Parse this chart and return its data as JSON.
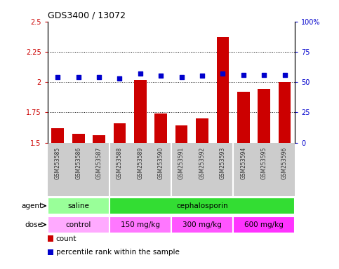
{
  "title": "GDS3400 / 13072",
  "samples": [
    "GSM253585",
    "GSM253586",
    "GSM253587",
    "GSM253588",
    "GSM253589",
    "GSM253590",
    "GSM253591",
    "GSM253592",
    "GSM253593",
    "GSM253594",
    "GSM253595",
    "GSM253596"
  ],
  "bar_values": [
    1.62,
    1.57,
    1.56,
    1.66,
    2.02,
    1.74,
    1.64,
    1.7,
    2.37,
    1.92,
    1.94,
    2.0
  ],
  "dot_values": [
    54,
    54,
    54,
    53,
    57,
    55,
    54,
    55,
    57,
    56,
    56,
    56
  ],
  "bar_color": "#cc0000",
  "dot_color": "#0000cc",
  "ylim_left": [
    1.5,
    2.5
  ],
  "ylim_right": [
    0,
    100
  ],
  "yticks_left": [
    1.5,
    1.75,
    2.0,
    2.25,
    2.5
  ],
  "ytick_labels_left": [
    "1.5",
    "1.75",
    "2",
    "2.25",
    "2.5"
  ],
  "yticks_right": [
    0,
    25,
    50,
    75,
    100
  ],
  "ytick_labels_right": [
    "0",
    "25",
    "50",
    "75",
    "100%"
  ],
  "hlines": [
    1.75,
    2.0,
    2.25
  ],
  "group_boundaries": [
    3,
    6,
    9
  ],
  "agent_groups": [
    {
      "label": "saline",
      "start": 0,
      "end": 3,
      "color": "#99ff99"
    },
    {
      "label": "cephalosporin",
      "start": 3,
      "end": 12,
      "color": "#33dd33"
    }
  ],
  "dose_groups": [
    {
      "label": "control",
      "start": 0,
      "end": 3,
      "color": "#ffaaff"
    },
    {
      "label": "150 mg/kg",
      "start": 3,
      "end": 6,
      "color": "#ff77ff"
    },
    {
      "label": "300 mg/kg",
      "start": 6,
      "end": 9,
      "color": "#ff55ff"
    },
    {
      "label": "600 mg/kg",
      "start": 9,
      "end": 12,
      "color": "#ff33ff"
    }
  ],
  "agent_label": "agent",
  "dose_label": "dose",
  "legend_count_label": "count",
  "legend_pct_label": "percentile rank within the sample",
  "bar_color_red": "#cc0000",
  "dot_color_blue": "#0000cc",
  "tick_area_bg": "#cccccc",
  "plot_bg_color": "#ffffff"
}
